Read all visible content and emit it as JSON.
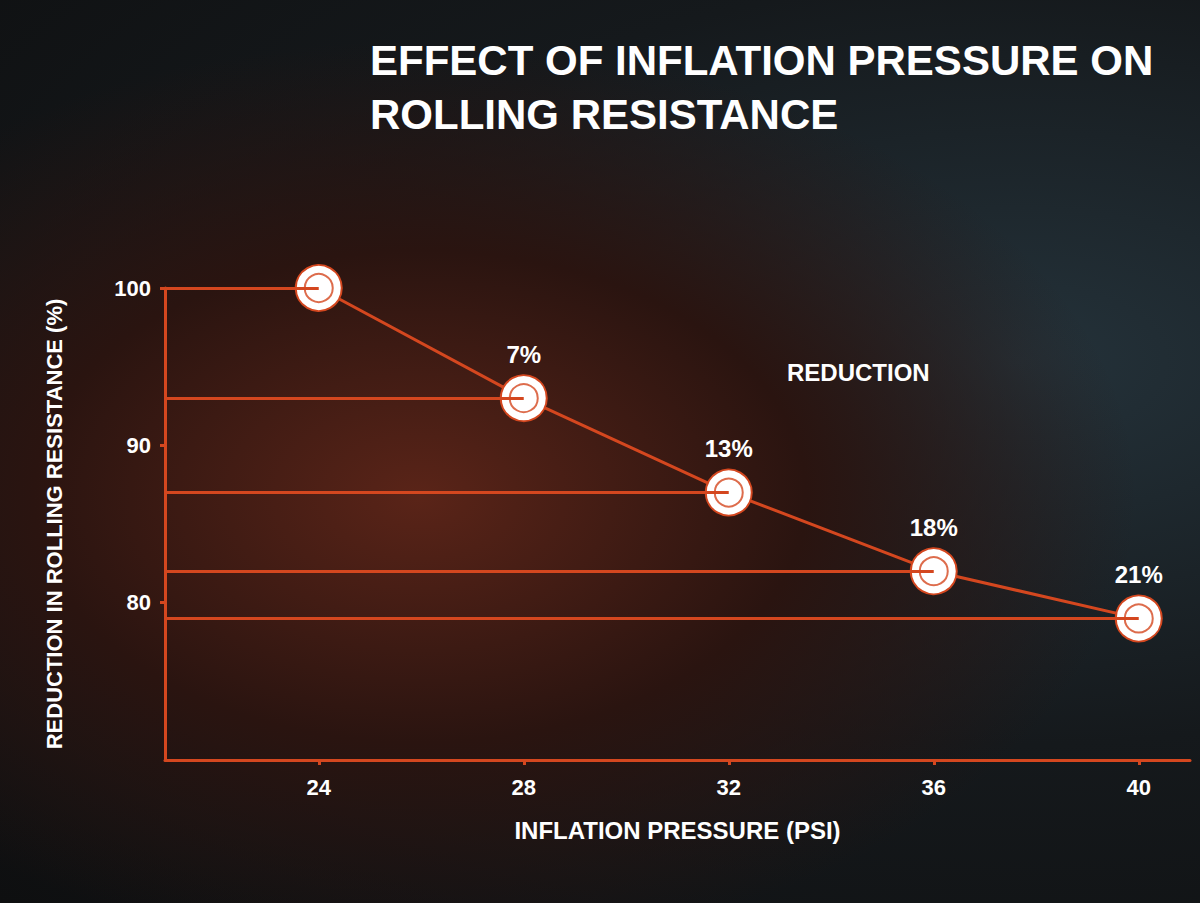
{
  "chart_data": {
    "type": "line",
    "title": "EFFECT OF INFLATION PRESSURE ON ROLLING RESISTANCE",
    "x_label": "INFLATION PRESSURE (PSI)",
    "y_label": "REDUCTION IN ROLLING RESISTANCE (%)",
    "annotation": "REDUCTION",
    "x": [
      24,
      28,
      32,
      36,
      40
    ],
    "values": [
      100,
      93,
      87,
      82,
      79
    ],
    "reduction_labels": [
      null,
      "7%",
      "13%",
      "18%",
      "21%"
    ],
    "color": "#d4471f",
    "xlim": [
      21,
      41
    ],
    "xticks": [
      24,
      28,
      32,
      36,
      40
    ],
    "ylim": [
      70,
      100
    ],
    "yticks": [
      80,
      90,
      100
    ],
    "grid": false,
    "marker": "double_circle"
  }
}
